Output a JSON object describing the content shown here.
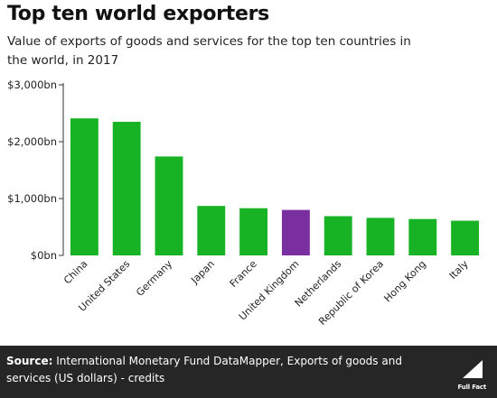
{
  "header": {
    "title": "Top ten world exporters",
    "subtitle": "Value of exports of goods and services for the top ten countries in the world, in 2017"
  },
  "chart_data": {
    "type": "bar",
    "title": "Top ten world exporters",
    "subtitle": "Value of exports of goods and services for the top ten countries in the world, in 2017",
    "categories": [
      "China",
      "United States",
      "Germany",
      "Japan",
      "France",
      "United Kingdom",
      "Netherlands",
      "Republic of Korea",
      "Hong Kong",
      "Italy"
    ],
    "values": [
      2410,
      2350,
      1740,
      870,
      830,
      800,
      690,
      660,
      640,
      610
    ],
    "bar_colors": [
      "#17b324",
      "#17b324",
      "#17b324",
      "#17b324",
      "#17b324",
      "#7a2fa0",
      "#17b324",
      "#17b324",
      "#17b324",
      "#17b324"
    ],
    "xlabel": "",
    "ylabel": "",
    "ylim": [
      0,
      3000
    ],
    "yticks": [
      0,
      1000,
      2000,
      3000
    ],
    "ytick_labels": [
      "$0bn",
      "$1,000bn",
      "$2,000bn",
      "$3,000bn"
    ],
    "grid": false,
    "legend": "none"
  },
  "footer": {
    "source_label": "Source:",
    "source_text": "International Monetary Fund DataMapper, Exports of goods and services (US dollars) - credits",
    "logo_text": "Full Fact"
  },
  "colors": {
    "highlight": "#7a2fa0",
    "bar": "#17b324",
    "footer_bg": "#262626"
  }
}
